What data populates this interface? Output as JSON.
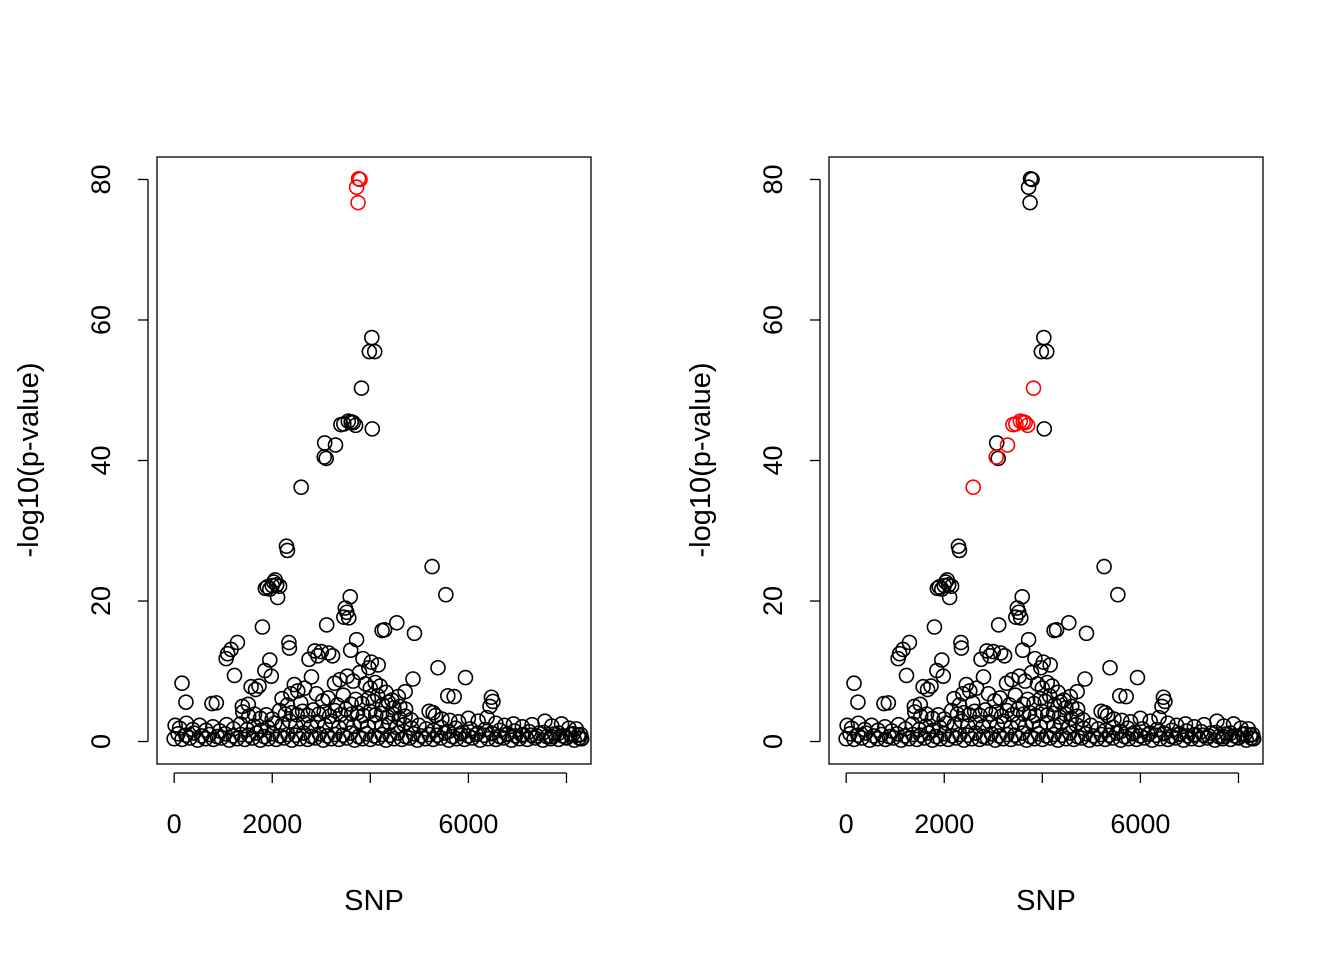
{
  "colors": {
    "background": "#ffffff",
    "normal": "#000000",
    "highlight": "#ff0000"
  },
  "chart_data": [
    {
      "type": "scatter",
      "title": "",
      "xlabel": "SNP",
      "ylabel": "-log10(p-value)",
      "xlim": [
        -350,
        8500
      ],
      "ylim": [
        -3.2,
        83.2
      ],
      "xticks": [
        0,
        2000,
        6000
      ],
      "xtick_labels": [
        "0",
        "2000",
        "6000"
      ],
      "xtick_marks": [
        0,
        2000,
        4000,
        6000,
        8000
      ],
      "yticks": [
        0,
        20,
        40,
        60,
        80
      ],
      "ytick_labels": [
        "0",
        "20",
        "40",
        "60",
        "80"
      ],
      "grid": false,
      "highlighted_points": [
        [
          3760,
          80.1
        ],
        [
          3790,
          80.0
        ],
        [
          3720,
          78.9
        ],
        [
          3750,
          76.7
        ]
      ],
      "points": [
        [
          3760,
          80.1
        ],
        [
          3790,
          80.0
        ],
        [
          3720,
          78.9
        ],
        [
          3750,
          76.7
        ],
        [
          4030,
          57.5
        ],
        [
          3980,
          55.5
        ],
        [
          4090,
          55.5
        ],
        [
          3820,
          50.3
        ],
        [
          4040,
          44.5
        ],
        [
          3400,
          45.1
        ],
        [
          3460,
          45.2
        ],
        [
          3550,
          45.6
        ],
        [
          3610,
          45.5
        ],
        [
          3650,
          45.4
        ],
        [
          3700,
          45.0
        ],
        [
          3070,
          42.5
        ],
        [
          3290,
          42.2
        ],
        [
          3060,
          40.5
        ],
        [
          3100,
          40.3
        ],
        [
          2590,
          36.2
        ],
        [
          2290,
          27.8
        ],
        [
          2310,
          27.2
        ],
        [
          5260,
          24.9
        ],
        [
          5540,
          20.9
        ],
        [
          1860,
          21.8
        ],
        [
          1900,
          22.0
        ],
        [
          1950,
          21.7
        ],
        [
          2000,
          22.2
        ],
        [
          2030,
          22.7
        ],
        [
          2060,
          23.0
        ],
        [
          2090,
          22.3
        ],
        [
          2150,
          22.1
        ],
        [
          2110,
          20.5
        ],
        [
          3590,
          20.6
        ],
        [
          3490,
          19.0
        ],
        [
          3520,
          18.4
        ],
        [
          3460,
          17.7
        ],
        [
          3560,
          17.6
        ],
        [
          4540,
          16.9
        ],
        [
          4240,
          15.8
        ],
        [
          4290,
          15.9
        ],
        [
          4900,
          15.4
        ],
        [
          3110,
          16.6
        ],
        [
          1800,
          16.3
        ],
        [
          2340,
          14.1
        ],
        [
          2350,
          13.3
        ],
        [
          1290,
          14.1
        ],
        [
          1160,
          13.1
        ],
        [
          1090,
          12.5
        ],
        [
          1060,
          11.8
        ],
        [
          3720,
          14.5
        ],
        [
          3600,
          13.0
        ],
        [
          3000,
          12.8
        ],
        [
          2870,
          12.9
        ],
        [
          2930,
          12.2
        ],
        [
          2750,
          11.7
        ],
        [
          3150,
          12.6
        ],
        [
          3230,
          12.2
        ],
        [
          1950,
          11.6
        ],
        [
          1850,
          10.1
        ],
        [
          1980,
          9.3
        ],
        [
          5380,
          10.5
        ],
        [
          5940,
          9.1
        ],
        [
          4020,
          11.3
        ],
        [
          4160,
          10.9
        ],
        [
          3850,
          11.8
        ],
        [
          3970,
          10.5
        ],
        [
          160,
          8.3
        ],
        [
          240,
          5.6
        ],
        [
          770,
          5.4
        ],
        [
          860,
          5.5
        ],
        [
          1230,
          9.4
        ],
        [
          1570,
          7.8
        ],
        [
          1660,
          7.4
        ],
        [
          1730,
          7.9
        ],
        [
          1390,
          5.0
        ],
        [
          1510,
          5.3
        ],
        [
          5580,
          6.5
        ],
        [
          5710,
          6.4
        ],
        [
          6470,
          6.3
        ],
        [
          6500,
          5.7
        ],
        [
          6440,
          5.0
        ],
        [
          4870,
          8.9
        ],
        [
          4710,
          7.1
        ],
        [
          4570,
          6.4
        ],
        [
          4440,
          5.9
        ],
        [
          4320,
          7.0
        ],
        [
          2450,
          8.1
        ],
        [
          2520,
          7.2
        ],
        [
          2660,
          7.6
        ],
        [
          2800,
          9.2
        ],
        [
          2900,
          6.8
        ],
        [
          3270,
          8.3
        ],
        [
          3380,
          8.8
        ],
        [
          3530,
          9.3
        ],
        [
          3650,
          8.6
        ],
        [
          3780,
          9.8
        ],
        [
          3900,
          8.2
        ],
        [
          4000,
          7.6
        ],
        [
          4100,
          8.4
        ],
        [
          4200,
          7.9
        ],
        [
          2200,
          6.1
        ],
        [
          2310,
          5.2
        ],
        [
          2380,
          6.8
        ],
        [
          2580,
          5.5
        ],
        [
          3030,
          5.8
        ],
        [
          3140,
          6.2
        ],
        [
          3330,
          5.2
        ],
        [
          3450,
          6.6
        ],
        [
          3610,
          5.3
        ],
        [
          3700,
          6.0
        ],
        [
          3830,
          5.4
        ],
        [
          3960,
          6.1
        ],
        [
          4060,
          5.7
        ],
        [
          4150,
          6.5
        ],
        [
          4250,
          5.2
        ],
        [
          4370,
          5.6
        ],
        [
          4480,
          4.8
        ],
        [
          4600,
          5.0
        ],
        [
          4720,
          4.6
        ],
        [
          2150,
          4.4
        ],
        [
          2270,
          3.9
        ],
        [
          2400,
          4.1
        ],
        [
          2510,
          3.8
        ],
        [
          2620,
          4.3
        ],
        [
          2730,
          3.7
        ],
        [
          2840,
          4.5
        ],
        [
          2950,
          3.9
        ],
        [
          3060,
          4.2
        ],
        [
          3170,
          3.6
        ],
        [
          3280,
          4.4
        ],
        [
          3390,
          3.8
        ],
        [
          3500,
          4.6
        ],
        [
          3620,
          3.9
        ],
        [
          3740,
          4.1
        ],
        [
          3860,
          3.7
        ],
        [
          3990,
          4.3
        ],
        [
          4110,
          3.8
        ],
        [
          4230,
          4.0
        ],
        [
          4350,
          3.5
        ],
        [
          4470,
          3.9
        ],
        [
          4590,
          3.3
        ],
        [
          4710,
          3.6
        ],
        [
          4830,
          3.1
        ],
        [
          1400,
          4.2
        ],
        [
          1520,
          3.6
        ],
        [
          1640,
          3.9
        ],
        [
          1760,
          3.3
        ],
        [
          1880,
          3.8
        ],
        [
          2000,
          3.2
        ],
        [
          5200,
          4.3
        ],
        [
          5280,
          4.1
        ],
        [
          5330,
          3.7
        ],
        [
          5460,
          3.2
        ],
        [
          5620,
          3.0
        ],
        [
          5800,
          2.8
        ],
        [
          6000,
          3.3
        ],
        [
          6200,
          2.9
        ],
        [
          6380,
          3.4
        ],
        [
          6560,
          2.6
        ],
        [
          6740,
          2.3
        ],
        [
          6920,
          2.5
        ],
        [
          7100,
          2.1
        ],
        [
          7300,
          2.4
        ],
        [
          7560,
          2.9
        ],
        [
          7700,
          2.2
        ],
        [
          7900,
          2.5
        ],
        [
          8050,
          1.9
        ],
        [
          8200,
          1.8
        ],
        [
          2050,
          2.6
        ],
        [
          2210,
          2.4
        ],
        [
          2360,
          2.9
        ],
        [
          2480,
          2.2
        ],
        [
          2640,
          2.7
        ],
        [
          2790,
          2.1
        ],
        [
          2920,
          2.8
        ],
        [
          3080,
          2.3
        ],
        [
          3220,
          2.9
        ],
        [
          3360,
          2.0
        ],
        [
          3510,
          2.6
        ],
        [
          3660,
          2.2
        ],
        [
          3810,
          2.8
        ],
        [
          3950,
          2.1
        ],
        [
          4090,
          2.7
        ],
        [
          4240,
          2.2
        ],
        [
          4390,
          2.6
        ],
        [
          4540,
          2.0
        ],
        [
          4690,
          2.4
        ],
        [
          4840,
          1.9
        ],
        [
          4990,
          2.3
        ],
        [
          5140,
          1.8
        ],
        [
          20,
          2.3
        ],
        [
          110,
          1.9
        ],
        [
          250,
          2.6
        ],
        [
          380,
          1.7
        ],
        [
          520,
          2.3
        ],
        [
          650,
          1.6
        ],
        [
          790,
          2.1
        ],
        [
          930,
          1.5
        ],
        [
          1070,
          2.4
        ],
        [
          1210,
          1.8
        ],
        [
          1350,
          2.5
        ],
        [
          1490,
          1.7
        ],
        [
          1630,
          2.2
        ],
        [
          1770,
          1.6
        ],
        [
          1910,
          2.0
        ],
        [
          5290,
          1.6
        ],
        [
          5440,
          2.0
        ],
        [
          5590,
          1.4
        ],
        [
          5740,
          1.9
        ],
        [
          5890,
          1.3
        ],
        [
          6040,
          1.8
        ],
        [
          6190,
          1.2
        ],
        [
          6340,
          1.7
        ],
        [
          6490,
          1.1
        ],
        [
          6640,
          1.6
        ],
        [
          6790,
          1.0
        ],
        [
          6940,
          1.5
        ],
        [
          7090,
          0.9
        ],
        [
          7240,
          1.4
        ],
        [
          7390,
          0.8
        ],
        [
          7540,
          1.3
        ],
        [
          7690,
          0.7
        ],
        [
          7840,
          1.2
        ],
        [
          7990,
          0.6
        ],
        [
          8140,
          1.1
        ],
        [
          8260,
          0.5
        ],
        [
          8290,
          1.0
        ],
        [
          8310,
          0.4
        ],
        [
          0,
          0.4
        ],
        [
          80,
          1.1
        ],
        [
          160,
          0.3
        ],
        [
          240,
          0.9
        ],
        [
          320,
          0.5
        ],
        [
          400,
          1.2
        ],
        [
          480,
          0.2
        ],
        [
          560,
          0.8
        ],
        [
          640,
          0.4
        ],
        [
          720,
          1.0
        ],
        [
          800,
          0.3
        ],
        [
          880,
          0.7
        ],
        [
          960,
          0.5
        ],
        [
          1040,
          1.1
        ],
        [
          1120,
          0.2
        ],
        [
          1200,
          0.8
        ],
        [
          1280,
          0.4
        ],
        [
          1360,
          1.0
        ],
        [
          1440,
          0.3
        ],
        [
          1520,
          0.9
        ],
        [
          1600,
          0.5
        ],
        [
          1680,
          1.2
        ],
        [
          1760,
          0.2
        ],
        [
          1840,
          0.7
        ],
        [
          1920,
          0.4
        ],
        [
          2000,
          1.1
        ],
        [
          2080,
          0.3
        ],
        [
          2160,
          0.8
        ],
        [
          2240,
          0.5
        ],
        [
          2320,
          1.0
        ],
        [
          2400,
          0.2
        ],
        [
          2480,
          0.9
        ],
        [
          2560,
          0.4
        ],
        [
          2640,
          1.2
        ],
        [
          2720,
          0.3
        ],
        [
          2800,
          0.7
        ],
        [
          2880,
          0.5
        ],
        [
          2960,
          1.1
        ],
        [
          3040,
          0.2
        ],
        [
          3120,
          0.8
        ],
        [
          3200,
          0.4
        ],
        [
          3280,
          1.0
        ],
        [
          3360,
          0.3
        ],
        [
          3440,
          0.9
        ],
        [
          3520,
          0.5
        ],
        [
          3600,
          1.2
        ],
        [
          3680,
          0.2
        ],
        [
          3760,
          0.7
        ],
        [
          3840,
          0.4
        ],
        [
          3920,
          1.1
        ],
        [
          4000,
          0.3
        ],
        [
          4080,
          0.8
        ],
        [
          4160,
          0.5
        ],
        [
          4240,
          1.0
        ],
        [
          4320,
          0.2
        ],
        [
          4400,
          0.9
        ],
        [
          4480,
          0.4
        ],
        [
          4560,
          1.2
        ],
        [
          4640,
          0.3
        ],
        [
          4720,
          0.7
        ],
        [
          4800,
          0.5
        ],
        [
          4880,
          1.1
        ],
        [
          4960,
          0.2
        ],
        [
          5040,
          0.8
        ],
        [
          5120,
          0.4
        ],
        [
          5200,
          1.0
        ],
        [
          5280,
          0.3
        ],
        [
          5360,
          0.9
        ],
        [
          5440,
          0.5
        ],
        [
          5520,
          1.2
        ],
        [
          5600,
          0.2
        ],
        [
          5680,
          0.7
        ],
        [
          5760,
          0.4
        ],
        [
          5840,
          1.1
        ],
        [
          5920,
          0.3
        ],
        [
          6000,
          0.8
        ],
        [
          6080,
          0.5
        ],
        [
          6160,
          1.0
        ],
        [
          6240,
          0.2
        ],
        [
          6320,
          0.9
        ],
        [
          6400,
          0.4
        ],
        [
          6480,
          1.2
        ],
        [
          6560,
          0.3
        ],
        [
          6640,
          0.7
        ],
        [
          6720,
          0.5
        ],
        [
          6800,
          1.1
        ],
        [
          6880,
          0.2
        ],
        [
          6960,
          0.8
        ],
        [
          7040,
          0.4
        ],
        [
          7120,
          1.0
        ],
        [
          7200,
          0.3
        ],
        [
          7280,
          0.9
        ],
        [
          7360,
          0.5
        ],
        [
          7440,
          1.2
        ],
        [
          7520,
          0.2
        ],
        [
          7600,
          0.7
        ],
        [
          7680,
          0.4
        ],
        [
          7760,
          1.1
        ],
        [
          7840,
          0.3
        ],
        [
          7920,
          0.8
        ],
        [
          8000,
          0.5
        ],
        [
          8080,
          1.0
        ],
        [
          8160,
          0.2
        ],
        [
          8240,
          0.9
        ],
        [
          8300,
          0.4
        ]
      ]
    },
    {
      "type": "scatter",
      "title": "",
      "xlabel": "SNP",
      "ylabel": "-log10(p-value)",
      "xlim": [
        -350,
        8500
      ],
      "ylim": [
        -3.2,
        83.2
      ],
      "xticks": [
        0,
        2000,
        6000
      ],
      "xtick_labels": [
        "0",
        "2000",
        "6000"
      ],
      "xtick_marks": [
        0,
        2000,
        4000,
        6000,
        8000
      ],
      "yticks": [
        0,
        20,
        40,
        60,
        80
      ],
      "ytick_labels": [
        "0",
        "20",
        "40",
        "60",
        "80"
      ],
      "grid": false,
      "highlighted_points": [
        [
          3820,
          50.3
        ],
        [
          3400,
          45.1
        ],
        [
          3460,
          45.2
        ],
        [
          3550,
          45.6
        ],
        [
          3610,
          45.5
        ],
        [
          3650,
          45.4
        ],
        [
          3700,
          45.0
        ],
        [
          3290,
          42.2
        ],
        [
          3060,
          40.5
        ],
        [
          2590,
          36.2
        ]
      ],
      "points": "same-as-first"
    }
  ]
}
